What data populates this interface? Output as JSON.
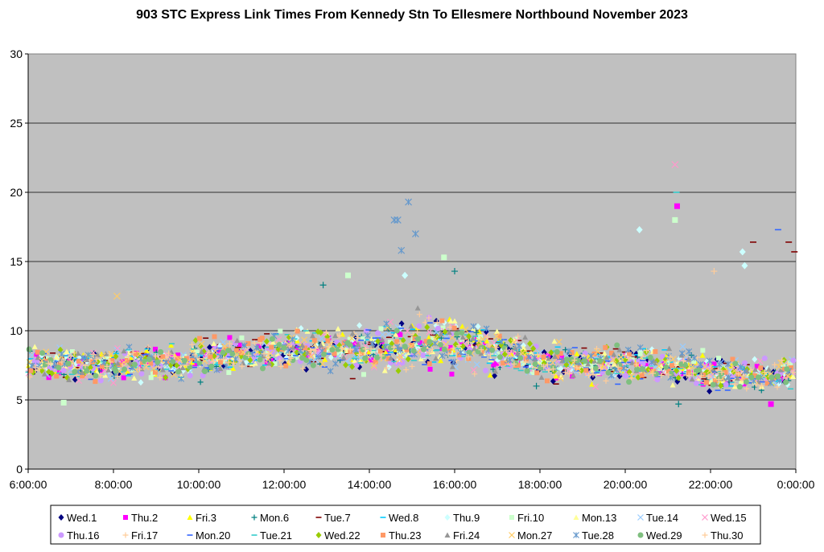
{
  "chart_data": {
    "type": "scatter",
    "title": "903 STC Express Link Times From Kennedy Stn To Ellesmere Northbound November 2023",
    "xlabel": "",
    "ylabel": "",
    "xlim": [
      "6:00:00",
      "0:00:00"
    ],
    "ylim": [
      0,
      30
    ],
    "x_ticks": [
      "6:00:00",
      "8:00:00",
      "10:00:00",
      "12:00:00",
      "14:00:00",
      "16:00:00",
      "18:00:00",
      "20:00:00",
      "22:00:00",
      "0:00:00"
    ],
    "y_ticks": [
      "0",
      "5",
      "10",
      "15",
      "20",
      "25",
      "30"
    ],
    "grid": "horizontal",
    "plot_background": "#c0c0c0",
    "legend_position": "bottom",
    "series": [
      {
        "name": "Wed.1",
        "marker": "diamond",
        "color": "#000080"
      },
      {
        "name": "Thu.2",
        "marker": "square",
        "color": "#ff00ff"
      },
      {
        "name": "Fri.3",
        "marker": "triangle",
        "color": "#ffff00"
      },
      {
        "name": "Mon.6",
        "marker": "plus",
        "color": "#008080"
      },
      {
        "name": "Tue.7",
        "marker": "dash",
        "color": "#800000"
      },
      {
        "name": "Wed.8",
        "marker": "dash",
        "color": "#00ccff"
      },
      {
        "name": "Thu.9",
        "marker": "diamond",
        "color": "#ccffff"
      },
      {
        "name": "Fri.10",
        "marker": "square",
        "color": "#ccffcc"
      },
      {
        "name": "Mon.13",
        "marker": "triangle",
        "color": "#ffff99"
      },
      {
        "name": "Tue.14",
        "marker": "x",
        "color": "#99ccff"
      },
      {
        "name": "Wed.15",
        "marker": "x",
        "color": "#ff99cc"
      },
      {
        "name": "Thu.16",
        "marker": "circle",
        "color": "#cc99ff"
      },
      {
        "name": "Fri.17",
        "marker": "plus",
        "color": "#ffcc99"
      },
      {
        "name": "Mon.20",
        "marker": "dash",
        "color": "#3366ff"
      },
      {
        "name": "Tue.21",
        "marker": "dash",
        "color": "#33cccc"
      },
      {
        "name": "Wed.22",
        "marker": "diamond",
        "color": "#99cc00"
      },
      {
        "name": "Thu.23",
        "marker": "square",
        "color": "#ff9966"
      },
      {
        "name": "Fri.24",
        "marker": "triangle",
        "color": "#969696"
      },
      {
        "name": "Mon.27",
        "marker": "x",
        "color": "#ffcc66"
      },
      {
        "name": "Tue.28",
        "marker": "asterisk",
        "color": "#6699cc"
      },
      {
        "name": "Wed.29",
        "marker": "circle",
        "color": "#7fbf7f"
      },
      {
        "name": "Thu.30",
        "marker": "plus",
        "color": "#ffcc99"
      }
    ],
    "notable_points": [
      {
        "series": "Tue.28",
        "x": "14:35:00",
        "y": 18.0
      },
      {
        "series": "Tue.28",
        "x": "14:40:00",
        "y": 18.0
      },
      {
        "series": "Tue.28",
        "x": "14:45:00",
        "y": 15.8
      },
      {
        "series": "Tue.28",
        "x": "14:55:00",
        "y": 19.3
      },
      {
        "series": "Tue.28",
        "x": "15:05:00",
        "y": 17.0
      },
      {
        "series": "Wed.15",
        "x": "21:10:00",
        "y": 22.0
      },
      {
        "series": "Thu.2",
        "x": "21:13:00",
        "y": 19.0
      },
      {
        "series": "Fri.10",
        "x": "21:10:00",
        "y": 18.0
      },
      {
        "series": "Tue.21",
        "x": "21:12:00",
        "y": 20.0
      },
      {
        "series": "Thu.9",
        "x": "20:20:00",
        "y": 17.3
      },
      {
        "series": "Mon.20",
        "x": "23:35:00",
        "y": 17.3
      },
      {
        "series": "Tue.7",
        "x": "23:00:00",
        "y": 16.4
      },
      {
        "series": "Tue.7",
        "x": "23:50:00",
        "y": 16.4
      },
      {
        "series": "Tue.7",
        "x": "23:58:00",
        "y": 15.7
      },
      {
        "series": "Thu.9",
        "x": "22:45:00",
        "y": 15.7
      },
      {
        "series": "Thu.9",
        "x": "22:48:00",
        "y": 14.7
      },
      {
        "series": "Fri.17",
        "x": "22:05:00",
        "y": 14.3
      },
      {
        "series": "Fri.10",
        "x": "15:45:00",
        "y": 15.3
      },
      {
        "series": "Mon.6",
        "x": "16:00:00",
        "y": 14.3
      },
      {
        "series": "Thu.9",
        "x": "14:50:00",
        "y": 14.0
      },
      {
        "series": "Fri.10",
        "x": "13:30:00",
        "y": 14.0
      },
      {
        "series": "Mon.6",
        "x": "12:55:00",
        "y": 13.3
      },
      {
        "series": "Mon.27",
        "x": "8:05:00",
        "y": 12.5
      },
      {
        "series": "Fri.10",
        "x": "6:50:00",
        "y": 4.8
      },
      {
        "series": "Thu.2",
        "x": "23:25:00",
        "y": 4.7
      },
      {
        "series": "Mon.6",
        "x": "21:15:00",
        "y": 4.7
      },
      {
        "series": "Mon.6",
        "x": "17:55:00",
        "y": 6.0
      }
    ]
  }
}
